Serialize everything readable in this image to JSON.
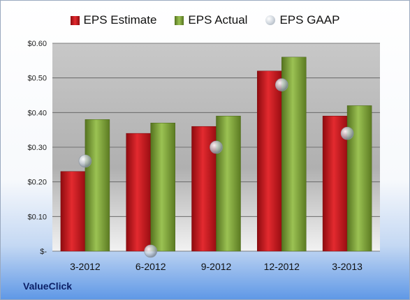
{
  "brand": "ValueClick",
  "legend": [
    {
      "name": "EPS Estimate",
      "color": "#d0141a"
    },
    {
      "name": "EPS Actual",
      "color": "#7fa63a"
    },
    {
      "name": "EPS GAAP",
      "color": "#bfc6cf"
    }
  ],
  "chart_data": {
    "type": "bar",
    "title": "",
    "xlabel": "",
    "ylabel": "",
    "categories": [
      "3-2012",
      "6-2012",
      "9-2012",
      "12-2012",
      "3-2013"
    ],
    "series": [
      {
        "name": "EPS Estimate",
        "type": "bar",
        "values": [
          0.23,
          0.34,
          0.36,
          0.52,
          0.39
        ]
      },
      {
        "name": "EPS Actual",
        "type": "bar",
        "values": [
          0.38,
          0.37,
          0.39,
          0.56,
          0.42
        ]
      },
      {
        "name": "EPS GAAP",
        "type": "scatter",
        "values": [
          0.26,
          0.0,
          0.3,
          0.48,
          0.34
        ]
      }
    ],
    "ylim": [
      0,
      0.6
    ],
    "yticks": [
      0,
      0.1,
      0.2,
      0.3,
      0.4,
      0.5,
      0.6
    ],
    "ytick_labels": [
      "$-",
      "$0.10",
      "$0.20",
      "$0.30",
      "$0.40",
      "$0.50",
      "$0.60"
    ],
    "grid": true,
    "legend_position": "top"
  }
}
